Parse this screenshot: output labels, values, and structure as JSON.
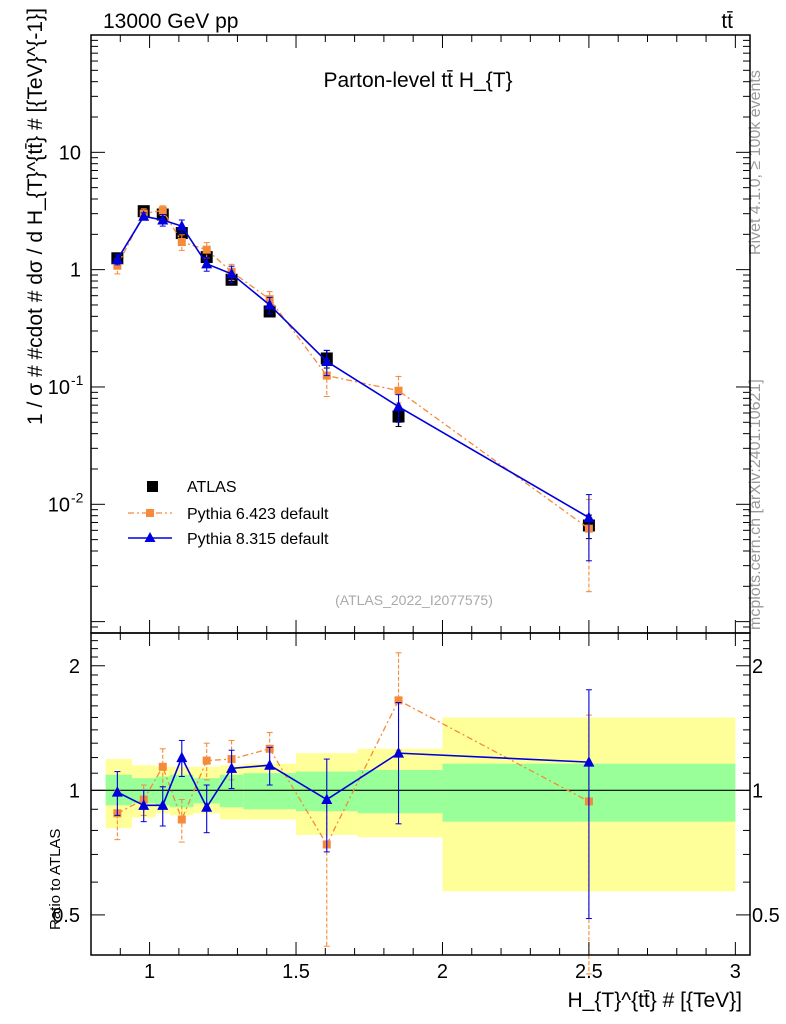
{
  "header": {
    "beam_label": "13000 GeV pp",
    "process_label": "tt̄",
    "plot_title": "Parton-level tt̄  H_{T}",
    "analysis_id": "(ATLAS_2022_I2077575)",
    "rivet_note": "Rivet 4.1.0, ≥ 100k events",
    "site_note": "mcplots.cern.ch [arXiv:2401.10621]"
  },
  "legend": {
    "atlas": "ATLAS",
    "py6": "Pythia 6.423 default",
    "py8": "Pythia 8.315 default"
  },
  "colors": {
    "atlas": "#000000",
    "py6": "#f58a3a",
    "py8": "#0000dd",
    "band_inner": "#99ff99",
    "band_outer": "#ffff99"
  },
  "chart_data": [
    {
      "type": "scatter",
      "panel": "main",
      "ylabel": "1 / σ # #cdot # dσ / d H_{T}^{tt̄} # [{TeV}^{-1}]",
      "yscale": "log",
      "xlim": [
        0.8,
        3.05
      ],
      "ylim": [
        0.0008,
        100
      ],
      "ytick_labels": [
        "10^-2",
        "10^-1",
        "1",
        "10"
      ],
      "series": [
        {
          "name": "ATLAS",
          "x": [
            0.89,
            0.98,
            1.045,
            1.11,
            1.195,
            1.28,
            1.41,
            1.605,
            1.85,
            2.5
          ],
          "y": [
            1.25,
            3.15,
            2.95,
            2.05,
            1.28,
            0.82,
            0.44,
            0.175,
            0.056,
            0.0066
          ],
          "yerr_lo": [
            0.1,
            0.2,
            0.2,
            0.15,
            0.1,
            0.07,
            0.04,
            0.03,
            0.01,
            0.0015
          ],
          "yerr_hi": [
            0.1,
            0.2,
            0.2,
            0.15,
            0.1,
            0.07,
            0.04,
            0.03,
            0.01,
            0.0015
          ]
        },
        {
          "name": "Pythia 6.423 default",
          "x": [
            0.89,
            0.98,
            1.045,
            1.11,
            1.195,
            1.28,
            1.41,
            1.605,
            1.85,
            2.5
          ],
          "y": [
            1.08,
            3.0,
            3.2,
            1.72,
            1.48,
            0.96,
            0.56,
            0.125,
            0.093,
            0.0062
          ],
          "yerr_lo": [
            0.16,
            0.3,
            0.3,
            0.26,
            0.22,
            0.15,
            0.09,
            0.042,
            0.02,
            0.0044
          ],
          "yerr_hi": [
            0.16,
            0.3,
            0.3,
            0.26,
            0.22,
            0.15,
            0.09,
            0.042,
            0.03,
            0.0048
          ]
        },
        {
          "name": "Pythia 8.315 default",
          "x": [
            0.89,
            0.98,
            1.045,
            1.11,
            1.195,
            1.28,
            1.41,
            1.605,
            1.85,
            2.5
          ],
          "y": [
            1.22,
            2.85,
            2.65,
            2.35,
            1.12,
            0.92,
            0.5,
            0.165,
            0.068,
            0.0077
          ],
          "yerr_lo": [
            0.12,
            0.2,
            0.3,
            0.3,
            0.15,
            0.15,
            0.08,
            0.04,
            0.018,
            0.0044
          ],
          "yerr_hi": [
            0.12,
            0.2,
            0.3,
            0.3,
            0.15,
            0.15,
            0.08,
            0.04,
            0.018,
            0.0044
          ]
        }
      ]
    },
    {
      "type": "scatter",
      "panel": "ratio",
      "ylabel": "Ratio to ATLAS",
      "xlabel": "H_{T}^{tt̄} # [{TeV}]",
      "yscale": "log",
      "xlim": [
        0.8,
        3.05
      ],
      "ylim": [
        0.4,
        2.4
      ],
      "xtick_labels": [
        "1",
        "1.5",
        "2",
        "2.5",
        "3"
      ],
      "ytick_labels": [
        "0.5",
        "1",
        "2"
      ],
      "bands": {
        "edges": [
          0.85,
          0.94,
          1.02,
          1.07,
          1.15,
          1.24,
          1.32,
          1.5,
          1.71,
          2.0,
          3.0
        ],
        "inner_lo": [
          0.92,
          0.93,
          0.92,
          0.91,
          0.93,
          0.91,
          0.9,
          0.89,
          0.88,
          0.84,
          0.82
        ],
        "inner_hi": [
          1.09,
          1.07,
          1.08,
          1.09,
          1.07,
          1.09,
          1.1,
          1.11,
          1.12,
          1.16,
          1.18
        ],
        "outer_lo": [
          0.81,
          0.86,
          0.88,
          0.87,
          0.88,
          0.85,
          0.85,
          0.78,
          0.77,
          0.57,
          0.57
        ],
        "outer_hi": [
          1.19,
          1.15,
          1.14,
          1.14,
          1.14,
          1.15,
          1.16,
          1.23,
          1.26,
          1.5,
          1.54
        ]
      },
      "series": [
        {
          "name": "Pythia 6.423 default",
          "x": [
            0.89,
            0.98,
            1.045,
            1.11,
            1.195,
            1.28,
            1.41,
            1.605,
            1.85,
            2.5
          ],
          "y": [
            0.88,
            0.95,
            1.14,
            0.85,
            1.18,
            1.19,
            1.26,
            0.74,
            1.65,
            0.94
          ],
          "yerr_lo": [
            0.12,
            0.08,
            0.12,
            0.1,
            0.12,
            0.13,
            0.12,
            0.32,
            0.4,
            0.58
          ],
          "yerr_hi": [
            0.12,
            0.08,
            0.12,
            0.1,
            0.12,
            0.13,
            0.12,
            0.22,
            0.5,
            0.58
          ]
        },
        {
          "name": "Pythia 8.315 default",
          "x": [
            0.89,
            0.98,
            1.045,
            1.11,
            1.195,
            1.28,
            1.41,
            1.605,
            1.85,
            2.5
          ],
          "y": [
            0.99,
            0.92,
            0.92,
            1.2,
            0.91,
            1.13,
            1.15,
            0.95,
            1.23,
            1.17
          ],
          "yerr_lo": [
            0.12,
            0.08,
            0.1,
            0.12,
            0.12,
            0.12,
            0.12,
            0.24,
            0.4,
            0.68
          ],
          "yerr_hi": [
            0.12,
            0.08,
            0.1,
            0.12,
            0.12,
            0.12,
            0.12,
            0.24,
            0.4,
            0.58
          ]
        }
      ]
    }
  ]
}
